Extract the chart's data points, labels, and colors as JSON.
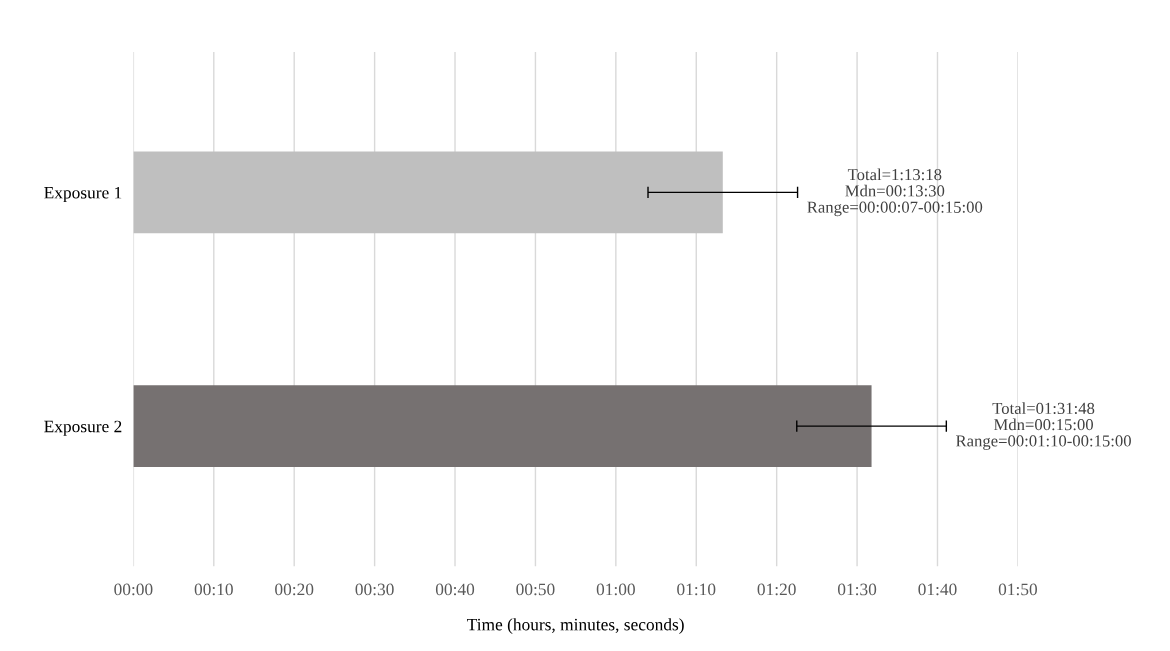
{
  "chart_data": {
    "type": "bar",
    "orientation": "horizontal",
    "xlabel": "Time (hours, minutes, seconds)",
    "categories": [
      "Exposure 1",
      "Exposure 2"
    ],
    "values": [
      73.3,
      91.8
    ],
    "colors": [
      "#bfbfbf",
      "#767171"
    ],
    "errors": [
      9.3,
      9.3
    ],
    "xlim": [
      0,
      110
    ],
    "xticks": [
      {
        "value": 0,
        "label": "00:00"
      },
      {
        "value": 10,
        "label": "00:10"
      },
      {
        "value": 20,
        "label": "00:20"
      },
      {
        "value": 30,
        "label": "00:30"
      },
      {
        "value": 40,
        "label": "00:40"
      },
      {
        "value": 50,
        "label": "00:50"
      },
      {
        "value": 60,
        "label": "01:00"
      },
      {
        "value": 70,
        "label": "01:10"
      },
      {
        "value": 80,
        "label": "01:20"
      },
      {
        "value": 90,
        "label": "01:30"
      },
      {
        "value": 100,
        "label": "01:40"
      },
      {
        "value": 110,
        "label": "01:50"
      }
    ],
    "grid": "x",
    "annotations": [
      "Total=1:13:18\nMdn=00:13:30\nRange=00:00:07-00:15:00",
      "Total=01:31:48\nMdn=00:15:00\nRange=00:01:10-00:15:00"
    ]
  }
}
